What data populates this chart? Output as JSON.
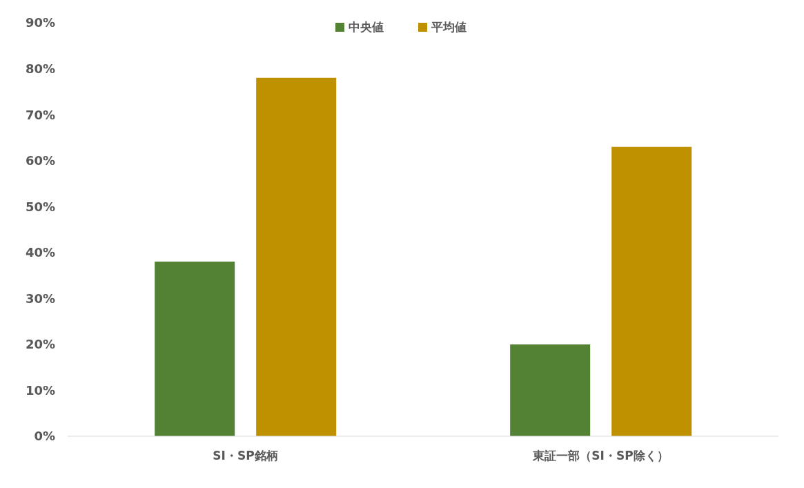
{
  "chart_data": {
    "type": "bar",
    "categories": [
      "SI・SP銘柄",
      "東証一部（SI・SP除く）"
    ],
    "series": [
      {
        "name": "中央値",
        "color": "#548235",
        "values": [
          38,
          20
        ]
      },
      {
        "name": "平均値",
        "color": "#bf9000",
        "values": [
          78,
          63
        ]
      }
    ],
    "ylim": [
      0,
      90
    ],
    "yticks": [
      {
        "value": 0,
        "label": "0%"
      },
      {
        "value": 10,
        "label": "10%"
      },
      {
        "value": 20,
        "label": "20%"
      },
      {
        "value": 30,
        "label": "30%"
      },
      {
        "value": 40,
        "label": "40%"
      },
      {
        "value": 50,
        "label": "50%"
      },
      {
        "value": 60,
        "label": "60%"
      },
      {
        "value": 70,
        "label": "70%"
      },
      {
        "value": 80,
        "label": "80%"
      },
      {
        "value": 90,
        "label": "90%"
      }
    ],
    "legend": "top",
    "grid": false
  }
}
